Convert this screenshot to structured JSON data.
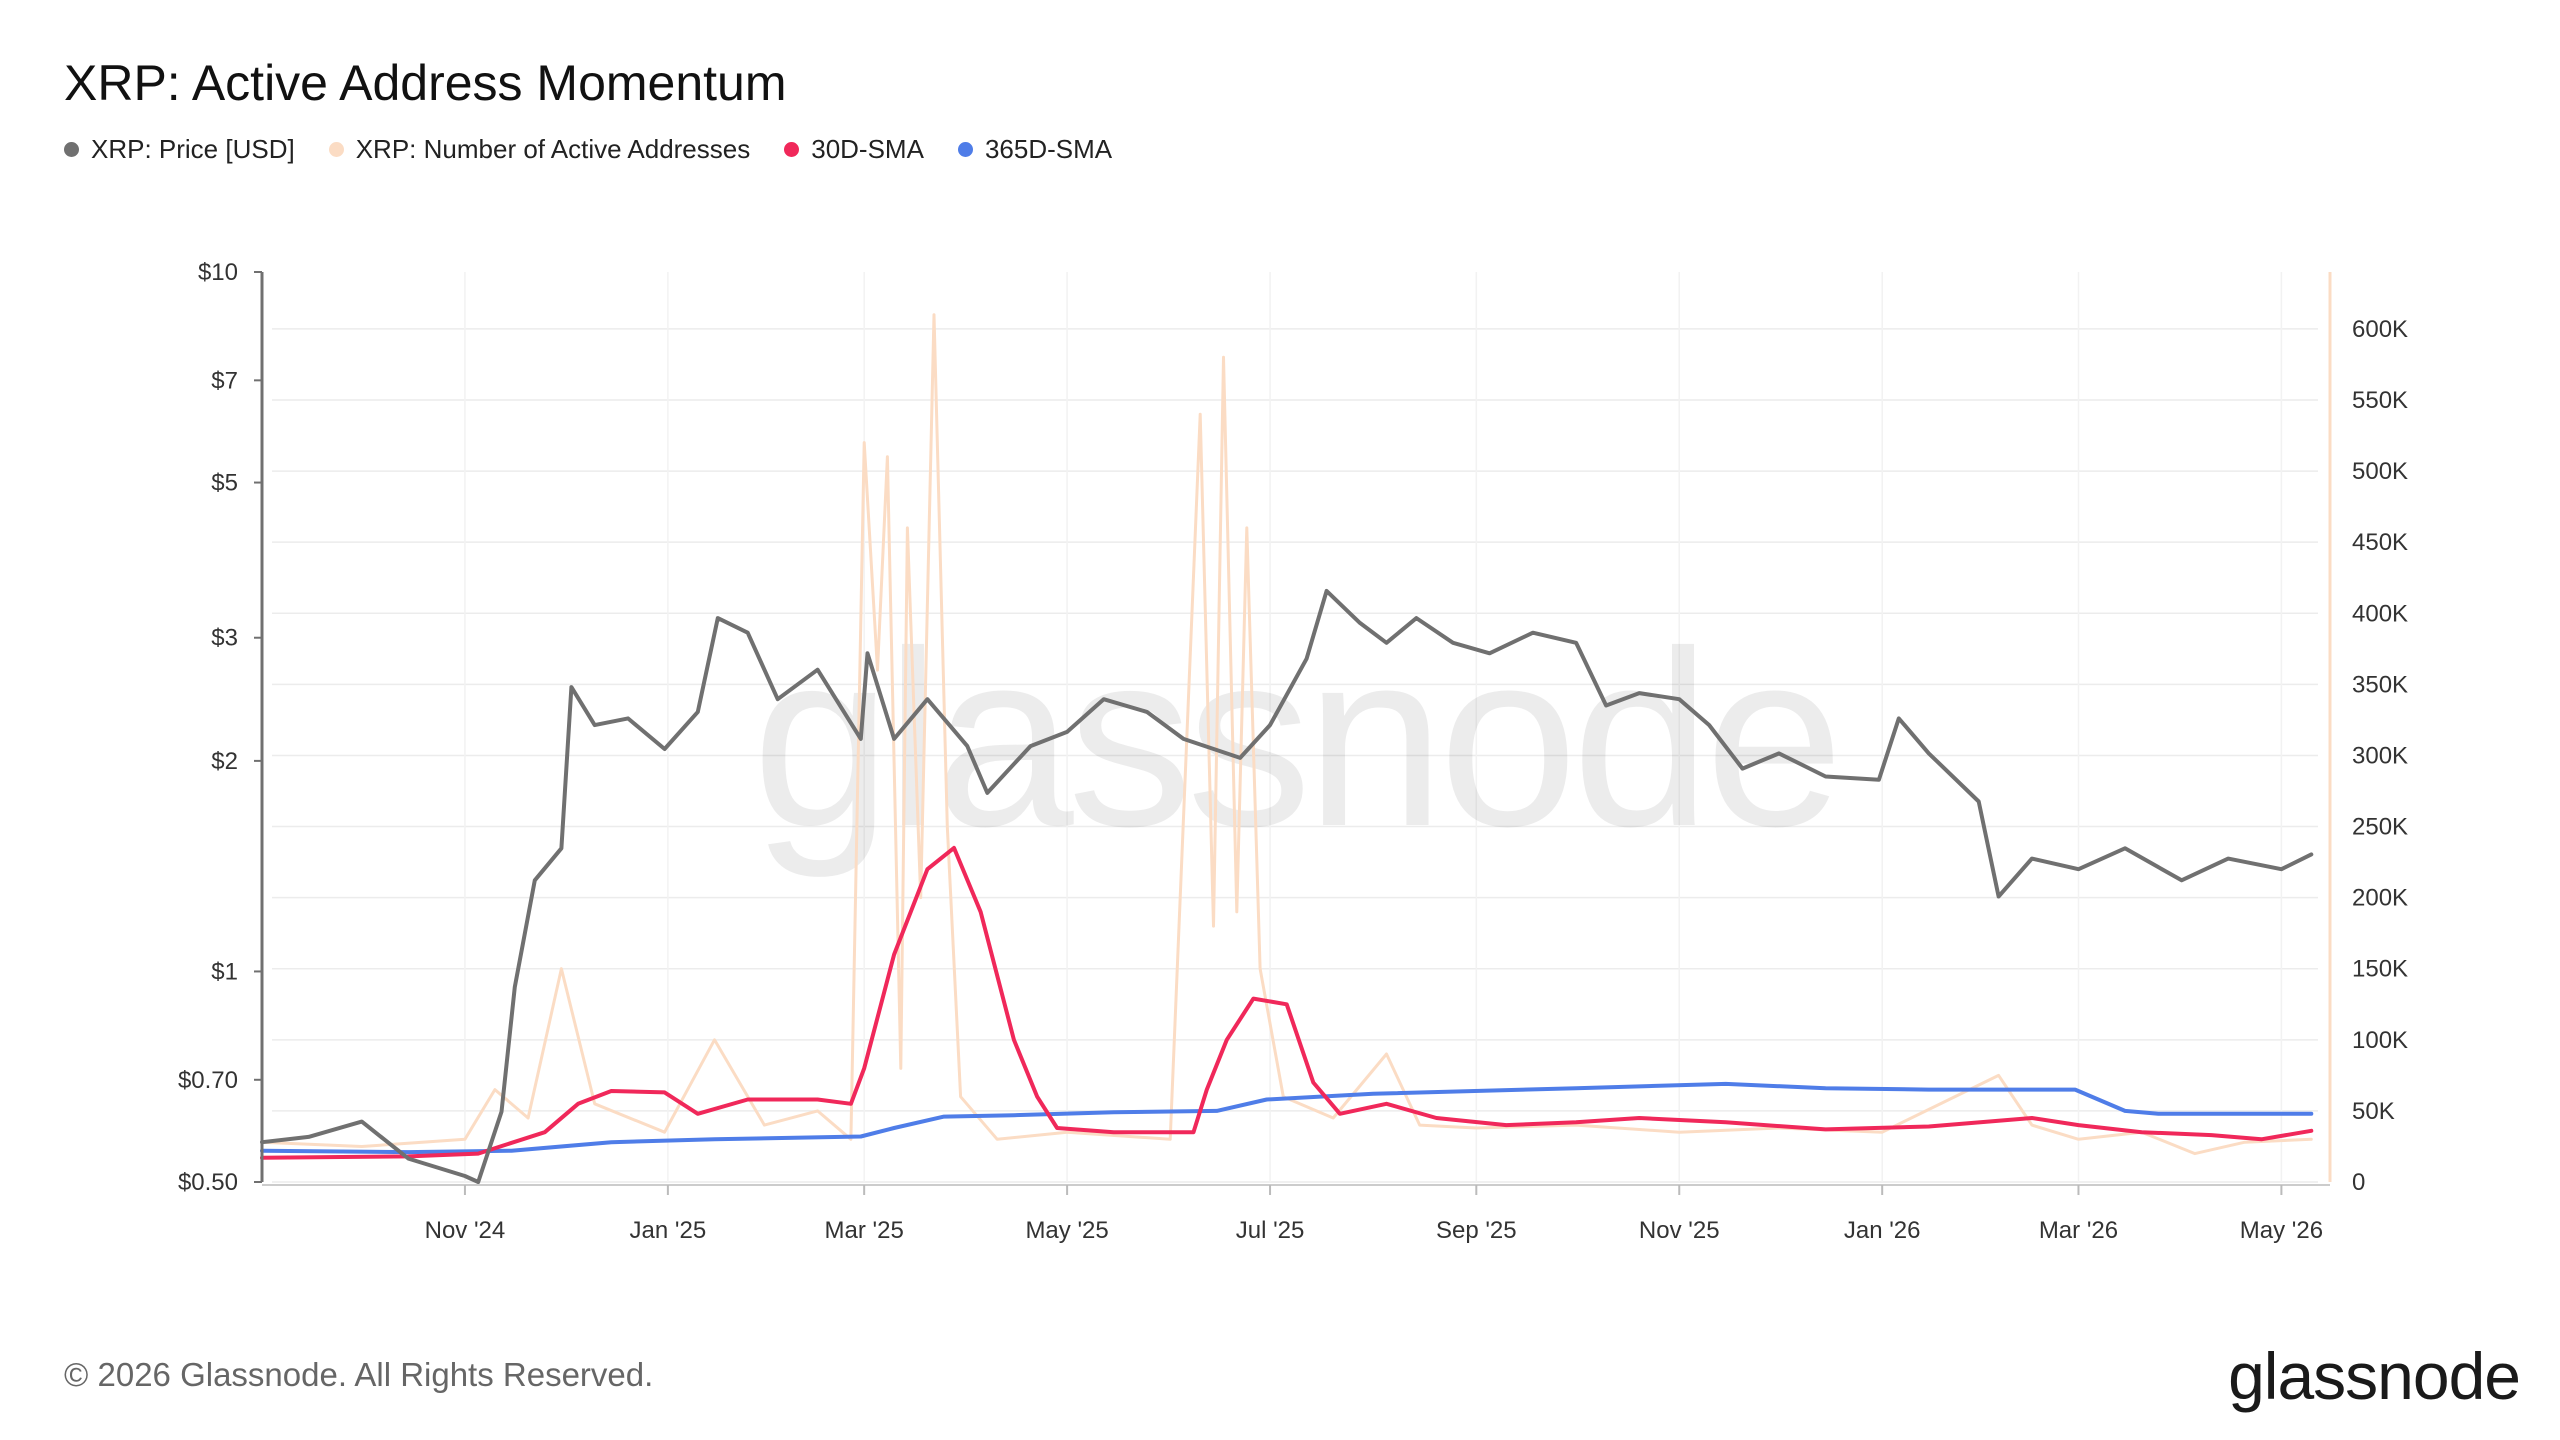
{
  "page": {
    "title": "XRP: Active Address Momentum",
    "copyright": "© 2026 Glassnode. All Rights Reserved.",
    "brand": "glassnode",
    "watermark": "glassnode"
  },
  "legend": [
    {
      "label": "XRP: Price [USD]",
      "color": "#707070"
    },
    {
      "label": "XRP: Number of Active Addresses",
      "color": "#fbdcc4"
    },
    {
      "label": "30D-SMA",
      "color": "#f0285a"
    },
    {
      "label": "365D-SMA",
      "color": "#4f7de8"
    }
  ],
  "chart_data": {
    "type": "line",
    "x_range": [
      "2024-09-01",
      "2026-05-12"
    ],
    "x_ticks": [
      {
        "date": "2024-11-01",
        "label": "Nov '24"
      },
      {
        "date": "2025-01-01",
        "label": "Jan '25"
      },
      {
        "date": "2025-03-01",
        "label": "Mar '25"
      },
      {
        "date": "2025-05-01",
        "label": "May '25"
      },
      {
        "date": "2025-07-01",
        "label": "Jul '25"
      },
      {
        "date": "2025-09-01",
        "label": "Sep '25"
      },
      {
        "date": "2025-11-01",
        "label": "Nov '25"
      },
      {
        "date": "2026-01-01",
        "label": "Jan '26"
      },
      {
        "date": "2026-03-01",
        "label": "Mar '26"
      },
      {
        "date": "2026-05-01",
        "label": "May '26"
      }
    ],
    "left_axis": {
      "scale": "log",
      "unit": "USD",
      "range": [
        0.5,
        10
      ],
      "ticks": [
        {
          "value": 10,
          "label": "$10"
        },
        {
          "value": 7,
          "label": "$7"
        },
        {
          "value": 5,
          "label": "$5"
        },
        {
          "value": 3,
          "label": "$3"
        },
        {
          "value": 2,
          "label": "$2"
        },
        {
          "value": 1,
          "label": "$1"
        },
        {
          "value": 0.7,
          "label": "$0.70"
        },
        {
          "value": 0.5,
          "label": "$0.50"
        }
      ]
    },
    "right_axis": {
      "scale": "linear",
      "range": [
        0,
        640000
      ],
      "ticks": [
        {
          "value": 600000,
          "label": "600K"
        },
        {
          "value": 550000,
          "label": "550K"
        },
        {
          "value": 500000,
          "label": "500K"
        },
        {
          "value": 450000,
          "label": "450K"
        },
        {
          "value": 400000,
          "label": "400K"
        },
        {
          "value": 350000,
          "label": "350K"
        },
        {
          "value": 300000,
          "label": "300K"
        },
        {
          "value": 250000,
          "label": "250K"
        },
        {
          "value": 200000,
          "label": "200K"
        },
        {
          "value": 150000,
          "label": "150K"
        },
        {
          "value": 100000,
          "label": "100K"
        },
        {
          "value": 50000,
          "label": "50K"
        },
        {
          "value": 0,
          "label": "0"
        }
      ]
    },
    "grid": true,
    "series": [
      {
        "name": "XRP: Price [USD]",
        "axis": "left",
        "color": "#707070",
        "points": [
          [
            "2024-09-01",
            0.57
          ],
          [
            "2024-09-15",
            0.58
          ],
          [
            "2024-10-01",
            0.61
          ],
          [
            "2024-10-15",
            0.54
          ],
          [
            "2024-11-01",
            0.51
          ],
          [
            "2024-11-05",
            0.5
          ],
          [
            "2024-11-12",
            0.63
          ],
          [
            "2024-11-16",
            0.95
          ],
          [
            "2024-11-22",
            1.35
          ],
          [
            "2024-11-30",
            1.5
          ],
          [
            "2024-12-03",
            2.55
          ],
          [
            "2024-12-10",
            2.25
          ],
          [
            "2024-12-20",
            2.3
          ],
          [
            "2024-12-31",
            2.08
          ],
          [
            "2025-01-10",
            2.35
          ],
          [
            "2025-01-16",
            3.2
          ],
          [
            "2025-01-25",
            3.05
          ],
          [
            "2025-02-03",
            2.45
          ],
          [
            "2025-02-15",
            2.7
          ],
          [
            "2025-02-28",
            2.15
          ],
          [
            "2025-03-02",
            2.85
          ],
          [
            "2025-03-10",
            2.15
          ],
          [
            "2025-03-20",
            2.45
          ],
          [
            "2025-04-01",
            2.1
          ],
          [
            "2025-04-07",
            1.8
          ],
          [
            "2025-04-20",
            2.1
          ],
          [
            "2025-05-01",
            2.2
          ],
          [
            "2025-05-12",
            2.45
          ],
          [
            "2025-05-25",
            2.35
          ],
          [
            "2025-06-05",
            2.15
          ],
          [
            "2025-06-22",
            2.02
          ],
          [
            "2025-07-01",
            2.25
          ],
          [
            "2025-07-12",
            2.8
          ],
          [
            "2025-07-18",
            3.5
          ],
          [
            "2025-07-28",
            3.15
          ],
          [
            "2025-08-05",
            2.95
          ],
          [
            "2025-08-14",
            3.2
          ],
          [
            "2025-08-25",
            2.95
          ],
          [
            "2025-09-05",
            2.85
          ],
          [
            "2025-09-18",
            3.05
          ],
          [
            "2025-10-01",
            2.95
          ],
          [
            "2025-10-10",
            2.4
          ],
          [
            "2025-10-20",
            2.5
          ],
          [
            "2025-11-01",
            2.45
          ],
          [
            "2025-11-10",
            2.25
          ],
          [
            "2025-11-20",
            1.95
          ],
          [
            "2025-12-01",
            2.05
          ],
          [
            "2025-12-15",
            1.9
          ],
          [
            "2025-12-31",
            1.88
          ],
          [
            "2026-01-06",
            2.3
          ],
          [
            "2026-01-15",
            2.05
          ],
          [
            "2026-01-30",
            1.75
          ],
          [
            "2026-02-05",
            1.28
          ],
          [
            "2026-02-15",
            1.45
          ],
          [
            "2026-03-01",
            1.4
          ],
          [
            "2026-03-15",
            1.5
          ],
          [
            "2026-04-01",
            1.35
          ],
          [
            "2026-04-15",
            1.45
          ],
          [
            "2026-05-01",
            1.4
          ],
          [
            "2026-05-10",
            1.47
          ]
        ]
      },
      {
        "name": "XRP: Number of Active Addresses",
        "axis": "right",
        "color": "#fbdcc4",
        "points": [
          [
            "2024-09-01",
            28000
          ],
          [
            "2024-10-01",
            25000
          ],
          [
            "2024-11-01",
            30000
          ],
          [
            "2024-11-10",
            65000
          ],
          [
            "2024-11-20",
            45000
          ],
          [
            "2024-11-30",
            150000
          ],
          [
            "2024-12-10",
            55000
          ],
          [
            "2024-12-31",
            35000
          ],
          [
            "2025-01-15",
            100000
          ],
          [
            "2025-01-30",
            40000
          ],
          [
            "2025-02-15",
            50000
          ],
          [
            "2025-02-25",
            30000
          ],
          [
            "2025-03-01",
            520000
          ],
          [
            "2025-03-05",
            360000
          ],
          [
            "2025-03-08",
            510000
          ],
          [
            "2025-03-12",
            80000
          ],
          [
            "2025-03-14",
            460000
          ],
          [
            "2025-03-18",
            200000
          ],
          [
            "2025-03-22",
            610000
          ],
          [
            "2025-03-26",
            250000
          ],
          [
            "2025-03-30",
            60000
          ],
          [
            "2025-04-10",
            30000
          ],
          [
            "2025-05-01",
            35000
          ],
          [
            "2025-06-01",
            30000
          ],
          [
            "2025-06-10",
            540000
          ],
          [
            "2025-06-14",
            180000
          ],
          [
            "2025-06-17",
            580000
          ],
          [
            "2025-06-21",
            190000
          ],
          [
            "2025-06-24",
            460000
          ],
          [
            "2025-06-28",
            150000
          ],
          [
            "2025-07-05",
            60000
          ],
          [
            "2025-07-20",
            45000
          ],
          [
            "2025-08-05",
            90000
          ],
          [
            "2025-08-15",
            40000
          ],
          [
            "2025-09-01",
            38000
          ],
          [
            "2025-10-01",
            40000
          ],
          [
            "2025-11-01",
            35000
          ],
          [
            "2025-12-01",
            38000
          ],
          [
            "2026-01-01",
            35000
          ],
          [
            "2026-02-05",
            75000
          ],
          [
            "2026-02-15",
            40000
          ],
          [
            "2026-03-01",
            30000
          ],
          [
            "2026-03-20",
            35000
          ],
          [
            "2026-04-05",
            20000
          ],
          [
            "2026-04-20",
            28000
          ],
          [
            "2026-05-10",
            30000
          ]
        ]
      },
      {
        "name": "30D-SMA",
        "axis": "right",
        "color": "#f0285a",
        "points": [
          [
            "2024-09-01",
            17000
          ],
          [
            "2024-10-15",
            18000
          ],
          [
            "2024-11-05",
            20000
          ],
          [
            "2024-11-25",
            35000
          ],
          [
            "2024-12-05",
            55000
          ],
          [
            "2024-12-15",
            64000
          ],
          [
            "2024-12-31",
            63000
          ],
          [
            "2025-01-10",
            48000
          ],
          [
            "2025-01-25",
            58000
          ],
          [
            "2025-02-15",
            58000
          ],
          [
            "2025-02-25",
            55000
          ],
          [
            "2025-03-01",
            80000
          ],
          [
            "2025-03-10",
            160000
          ],
          [
            "2025-03-20",
            220000
          ],
          [
            "2025-03-28",
            235000
          ],
          [
            "2025-04-05",
            190000
          ],
          [
            "2025-04-15",
            100000
          ],
          [
            "2025-04-22",
            60000
          ],
          [
            "2025-04-28",
            38000
          ],
          [
            "2025-05-15",
            35000
          ],
          [
            "2025-06-08",
            35000
          ],
          [
            "2025-06-12",
            65000
          ],
          [
            "2025-06-18",
            100000
          ],
          [
            "2025-06-26",
            129000
          ],
          [
            "2025-07-06",
            125000
          ],
          [
            "2025-07-14",
            70000
          ],
          [
            "2025-07-22",
            48000
          ],
          [
            "2025-08-05",
            55000
          ],
          [
            "2025-08-20",
            45000
          ],
          [
            "2025-09-10",
            40000
          ],
          [
            "2025-10-01",
            42000
          ],
          [
            "2025-10-20",
            45000
          ],
          [
            "2025-11-15",
            42000
          ],
          [
            "2025-12-15",
            37000
          ],
          [
            "2026-01-15",
            39000
          ],
          [
            "2026-02-15",
            45000
          ],
          [
            "2026-03-01",
            40000
          ],
          [
            "2026-03-20",
            35000
          ],
          [
            "2026-04-10",
            33000
          ],
          [
            "2026-04-25",
            30000
          ],
          [
            "2026-05-10",
            36000
          ]
        ]
      },
      {
        "name": "365D-SMA",
        "axis": "right",
        "color": "#4f7de8",
        "points": [
          [
            "2024-09-01",
            22000
          ],
          [
            "2024-10-15",
            21000
          ],
          [
            "2024-11-15",
            22000
          ],
          [
            "2024-12-15",
            28000
          ],
          [
            "2025-01-15",
            30000
          ],
          [
            "2025-02-28",
            32000
          ],
          [
            "2025-03-10",
            38000
          ],
          [
            "2025-03-25",
            46000
          ],
          [
            "2025-04-15",
            47000
          ],
          [
            "2025-05-15",
            49000
          ],
          [
            "2025-06-15",
            50000
          ],
          [
            "2025-06-30",
            58000
          ],
          [
            "2025-08-01",
            62000
          ],
          [
            "2025-10-01",
            66000
          ],
          [
            "2025-11-15",
            69000
          ],
          [
            "2025-12-15",
            66000
          ],
          [
            "2026-01-15",
            65000
          ],
          [
            "2026-02-28",
            65000
          ],
          [
            "2026-03-15",
            50000
          ],
          [
            "2026-03-25",
            48000
          ],
          [
            "2026-05-10",
            48000
          ]
        ]
      }
    ]
  }
}
